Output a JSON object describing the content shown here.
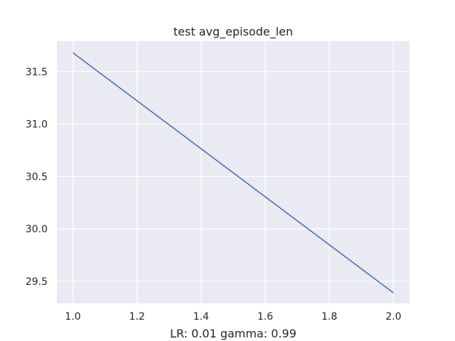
{
  "chart_data": {
    "type": "line",
    "title": "test avg_episode_len",
    "xlabel": "LR: 0.01 gamma: 0.99",
    "ylabel": "",
    "xlim": [
      0.95,
      2.05
    ],
    "ylim": [
      29.29,
      31.79
    ],
    "xticks": [
      1.0,
      1.2,
      1.4,
      1.6,
      1.8,
      2.0
    ],
    "xtick_labels": [
      "1.0",
      "1.2",
      "1.4",
      "1.6",
      "1.8",
      "2.0"
    ],
    "yticks": [
      29.5,
      30.0,
      30.5,
      31.0,
      31.5
    ],
    "ytick_labels": [
      "29.5",
      "30.0",
      "30.5",
      "31.0",
      "31.5"
    ],
    "grid": true,
    "series": [
      {
        "color": "#4c72b0",
        "x": [
          1.0,
          2.0
        ],
        "y": [
          31.68,
          29.39
        ]
      }
    ]
  }
}
